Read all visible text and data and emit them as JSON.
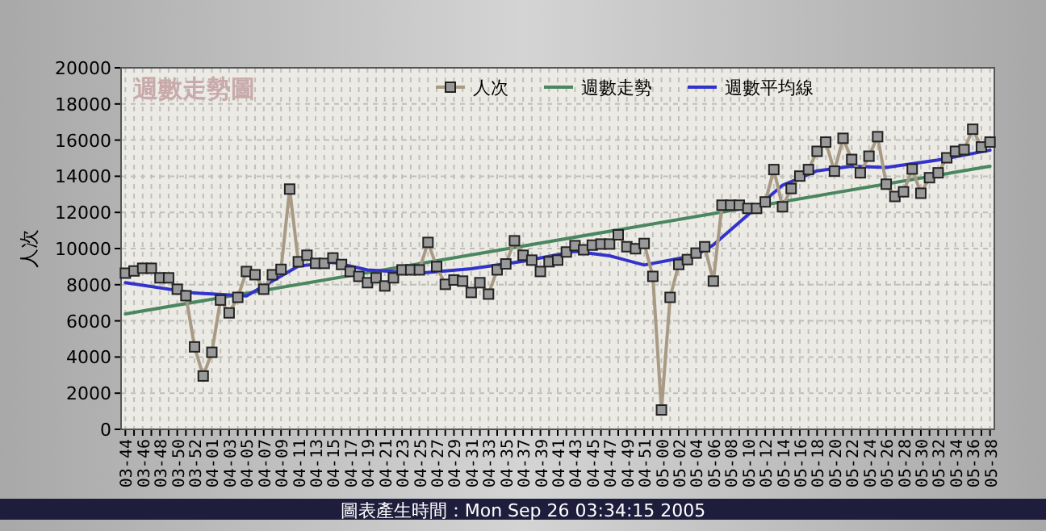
{
  "chart_data": {
    "type": "line",
    "subtitle": "週數走勢圖",
    "ylabel": "人次",
    "annotations": [
      "圖表產生時間：Mon Sep 26 03:34:15 2005"
    ],
    "categories": [
      "03-44",
      null,
      "03-46",
      null,
      "03-48",
      null,
      "03-50",
      null,
      "03-52",
      null,
      "04-01",
      null,
      "04-03",
      null,
      "04-05",
      null,
      "04-07",
      null,
      "04-09",
      null,
      "04-11",
      null,
      "04-13",
      null,
      "04-15",
      null,
      "04-17",
      null,
      "04-19",
      null,
      "04-21",
      null,
      "04-23",
      null,
      "04-25",
      null,
      "04-27",
      null,
      "04-29",
      null,
      "04-31",
      null,
      "04-33",
      null,
      "04-35",
      null,
      "04-37",
      null,
      "04-39",
      null,
      "04-41",
      null,
      "04-43",
      null,
      "04-45",
      null,
      "04-47",
      null,
      "04-49",
      null,
      "04-51",
      null,
      "05-00",
      null,
      "05-02",
      null,
      "05-04",
      null,
      "05-06",
      null,
      "05-08",
      null,
      "05-10",
      null,
      "05-12",
      null,
      "05-14",
      null,
      "05-16",
      null,
      "05-18",
      null,
      "05-20",
      null,
      "05-22",
      null,
      "05-24",
      null,
      "05-26",
      null,
      "05-28",
      null,
      "05-30",
      null,
      "05-32",
      null,
      "05-34",
      null,
      "05-36",
      null,
      "05-38"
    ],
    "series": [
      {
        "name": "人次",
        "color": "#a89a84",
        "marker": "square",
        "values": [
          8640,
          8760,
          8910,
          8910,
          8380,
          8380,
          7750,
          7390,
          4560,
          2950,
          4260,
          7150,
          6440,
          7300,
          8730,
          8550,
          7750,
          8550,
          8850,
          13290,
          9270,
          9630,
          9180,
          9180,
          9480,
          9120,
          8730,
          8460,
          8110,
          8380,
          7930,
          8380,
          8820,
          8820,
          8820,
          10340,
          9000,
          8020,
          8260,
          8200,
          7570,
          8110,
          7480,
          8820,
          9150,
          10430,
          9630,
          9360,
          8730,
          9270,
          9360,
          9810,
          10160,
          9930,
          10190,
          10250,
          10250,
          10760,
          10100,
          9990,
          10280,
          8460,
          1070,
          7300,
          9120,
          9390,
          9750,
          10100,
          8200,
          12400,
          12400,
          12400,
          12220,
          12220,
          12580,
          14370,
          12310,
          13320,
          14010,
          14370,
          15380,
          15890,
          14280,
          16100,
          14930,
          14190,
          15110,
          16190,
          13560,
          12880,
          13140,
          14400,
          13060,
          13920,
          14190,
          15020,
          15380,
          15470,
          16600,
          15620,
          15890
        ]
      },
      {
        "name": "週數走勢",
        "color": "#4a8660",
        "x": [
          "03-44",
          "05-38"
        ],
        "values": [
          6380,
          14550
        ]
      },
      {
        "name": "週數平均線",
        "color": "#3333cc",
        "x": [
          "03-44",
          "03-52",
          "04-05",
          "04-11",
          "04-15",
          "04-19",
          "04-25",
          "04-31",
          "04-37",
          "04-43",
          "04-47",
          "04-51",
          "05-04",
          "05-06",
          "05-10",
          "05-14",
          "05-18",
          "05-22",
          "05-26",
          "05-32",
          "05-38"
        ],
        "values": [
          8110,
          7540,
          7380,
          9030,
          9240,
          8820,
          8640,
          8880,
          9300,
          9840,
          9600,
          9090,
          9630,
          10200,
          11860,
          13500,
          14300,
          14550,
          14490,
          14900,
          15440
        ]
      }
    ],
    "ylim": [
      0,
      20000
    ],
    "yticks": [
      0,
      2000,
      4000,
      6000,
      8000,
      10000,
      12000,
      14000,
      16000,
      18000,
      20000
    ],
    "grid": true,
    "legend": "top",
    "line_style": "solid"
  }
}
